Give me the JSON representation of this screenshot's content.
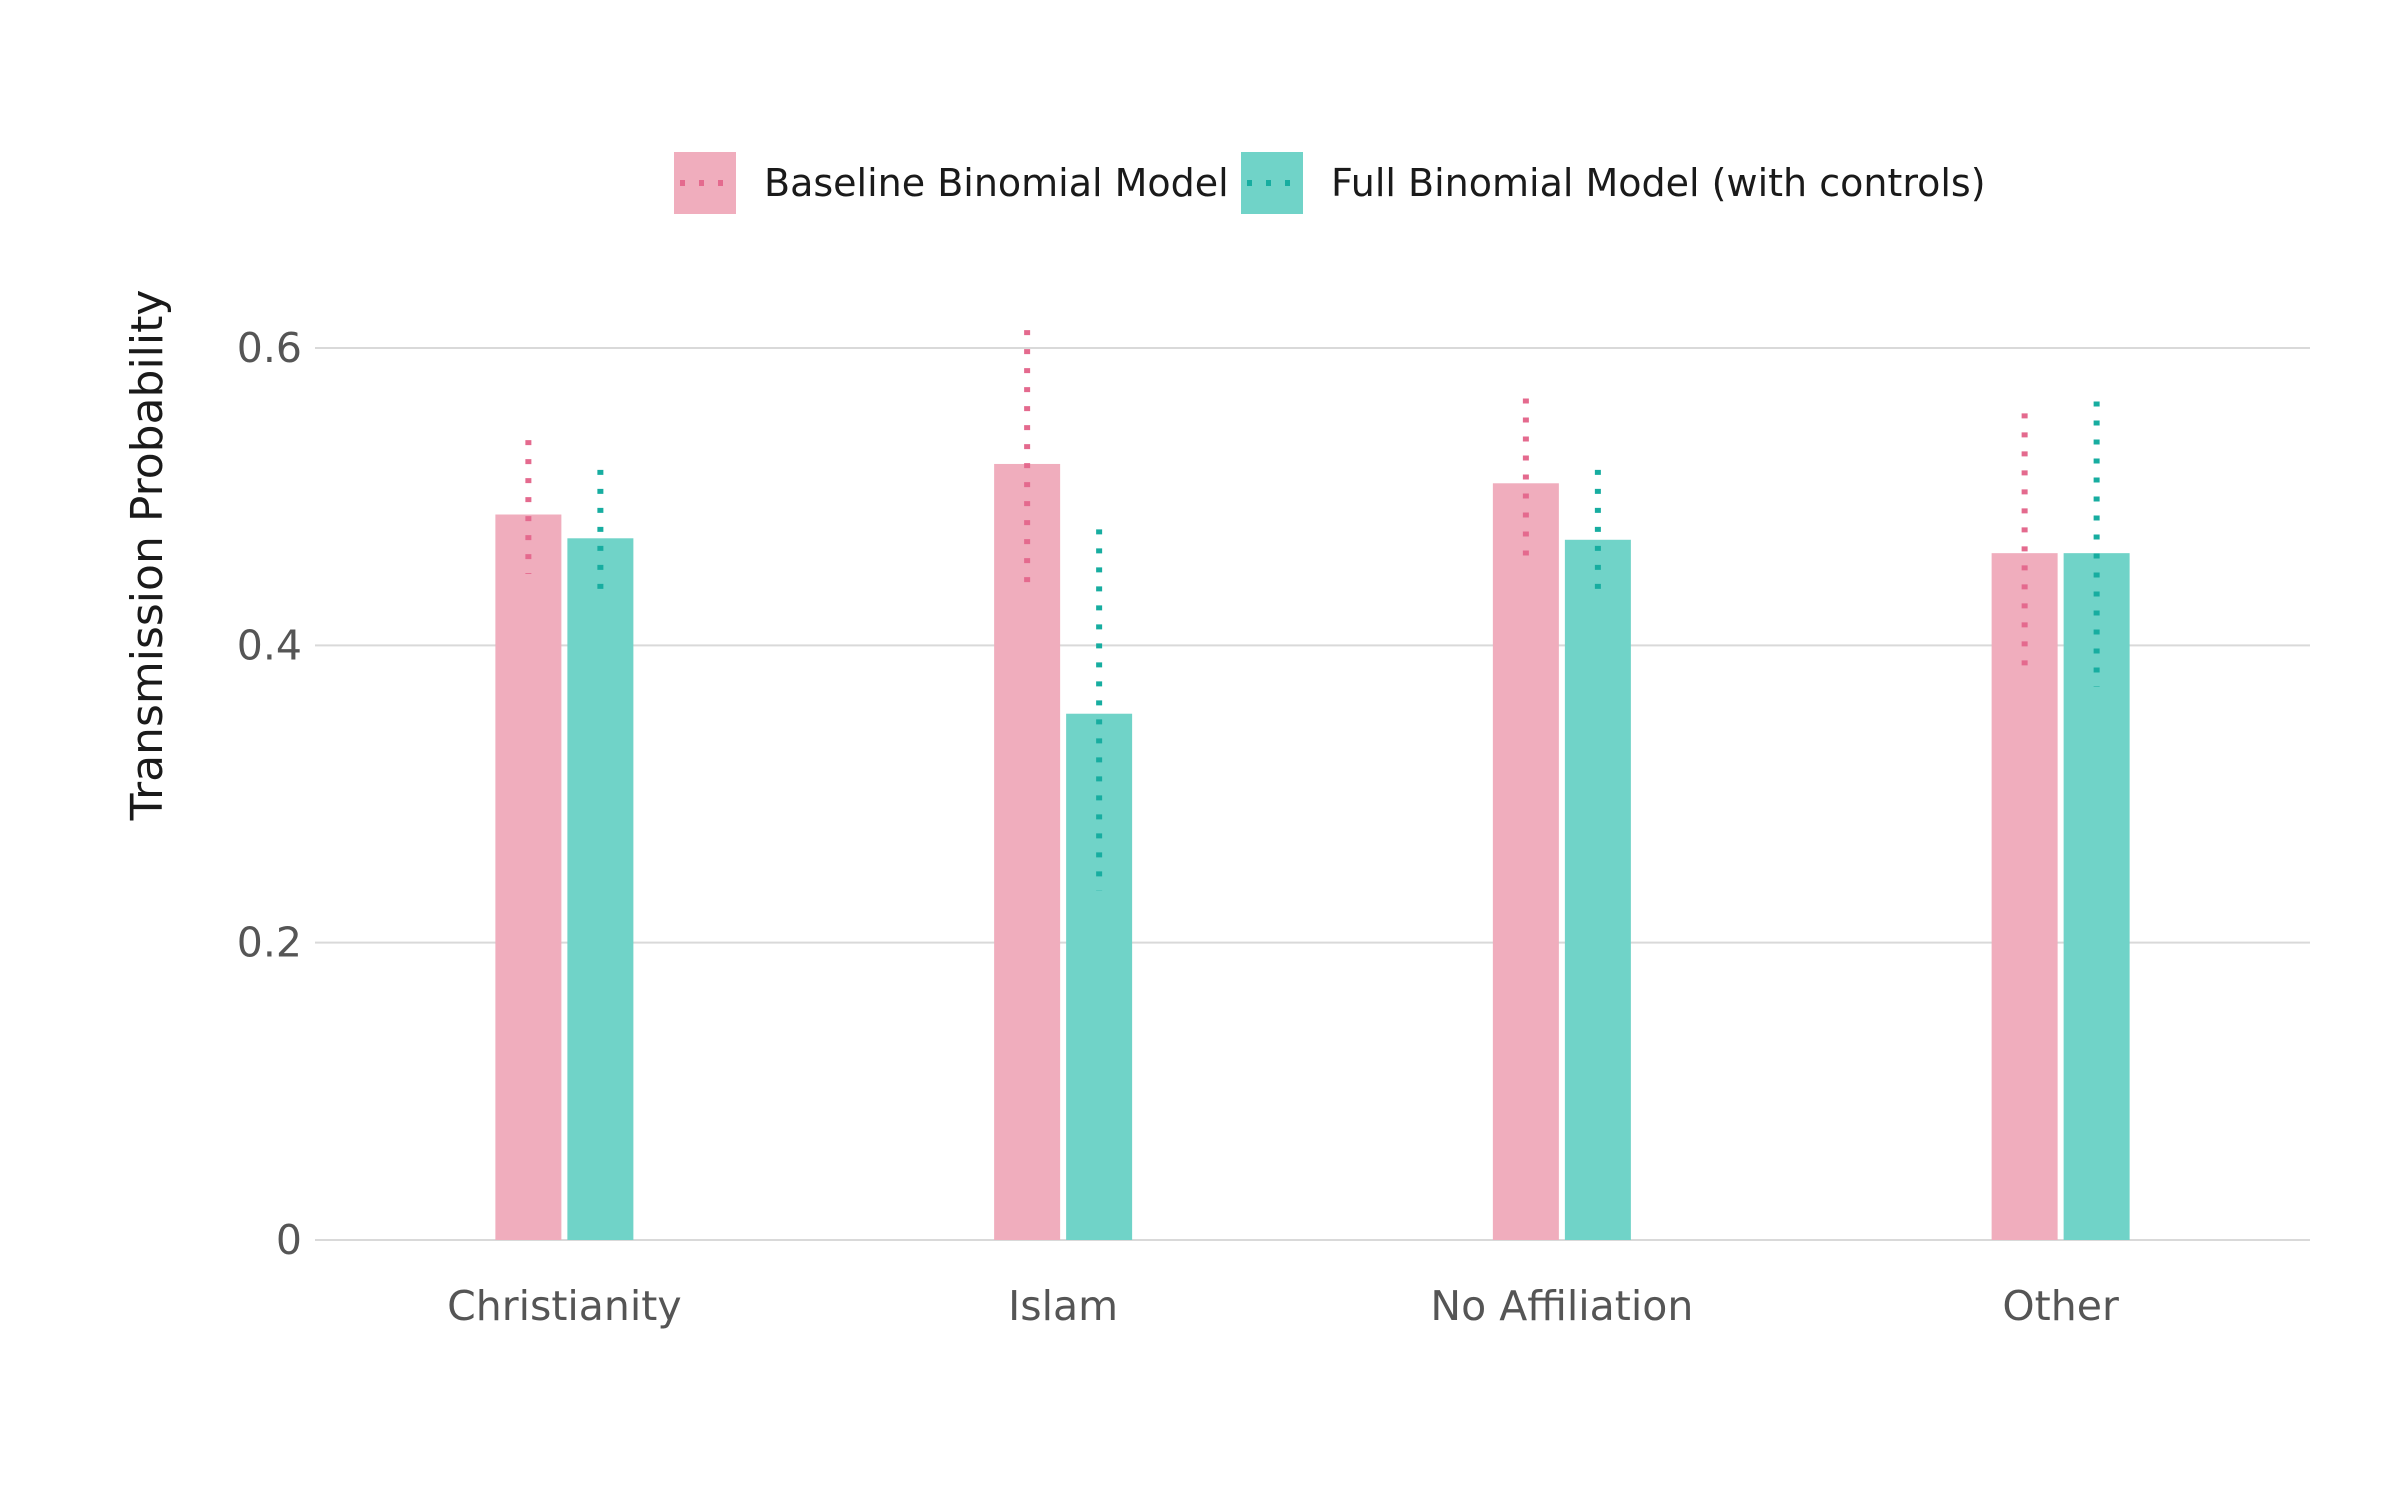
{
  "chart_data": {
    "type": "bar",
    "title": "",
    "xlabel": "",
    "ylabel": "Transmission Probability",
    "categories": [
      "Christianity",
      "Islam",
      "No Affiliation",
      "Other"
    ],
    "ylim": [
      0,
      0.6
    ],
    "yticks": [
      0,
      0.2,
      0.4,
      0.6
    ],
    "ytick_labels": [
      "0",
      "0.2",
      "0.4",
      "0.6"
    ],
    "grid": "horizontal",
    "legend_position": "top",
    "error_bar_style": "dotted",
    "series": [
      {
        "name": "Baseline Binomial Model",
        "color": "#F0ADBD",
        "error_color": "#E46A8E",
        "values": [
          0.488,
          0.522,
          0.509,
          0.462
        ],
        "lower": [
          0.448,
          0.438,
          0.458,
          0.382
        ],
        "upper": [
          0.538,
          0.612,
          0.566,
          0.556
        ]
      },
      {
        "name": "Full Binomial Model (with controls)",
        "color": "#70D3C8",
        "error_color": "#17ADA0",
        "values": [
          0.472,
          0.354,
          0.471,
          0.462
        ],
        "lower": [
          0.43,
          0.235,
          0.43,
          0.372
        ],
        "upper": [
          0.518,
          0.478,
          0.518,
          0.564
        ]
      }
    ]
  }
}
